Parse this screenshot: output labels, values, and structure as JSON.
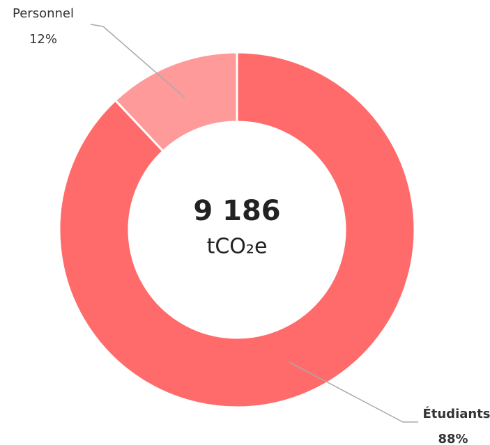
{
  "chart_data": {
    "type": "donut",
    "categories": [
      "Étudiants",
      "Personnel"
    ],
    "values": [
      88,
      12
    ],
    "value_labels": [
      "88%",
      "12%"
    ],
    "colors": [
      "#ff6b6b",
      "#ff9a9a"
    ],
    "center_label": "9 186",
    "center_unit": "tCO₂e"
  }
}
